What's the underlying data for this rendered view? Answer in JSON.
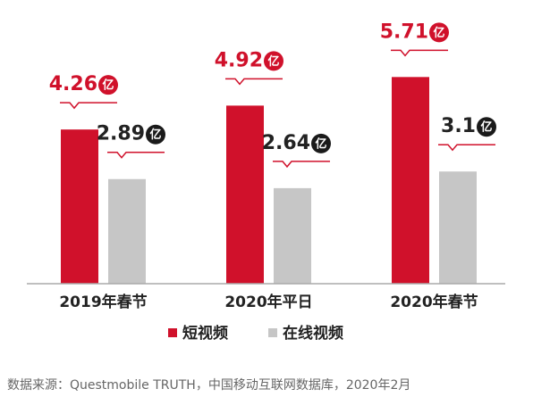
{
  "chart_data": {
    "type": "bar",
    "categories": [
      "2019年春节",
      "2020年平日",
      "2020年春节"
    ],
    "series": [
      {
        "name": "短视频",
        "color": "#d0112b",
        "values": [
          4.26,
          4.92,
          5.71
        ]
      },
      {
        "name": "在线视频",
        "color": "#c6c6c6",
        "values": [
          2.89,
          2.64,
          3.1
        ]
      }
    ],
    "unit": "亿",
    "ylim": [
      0,
      7
    ],
    "source": "数据来源：Questmobile TRUTH，中国移动互联网数据库，2020年2月"
  }
}
